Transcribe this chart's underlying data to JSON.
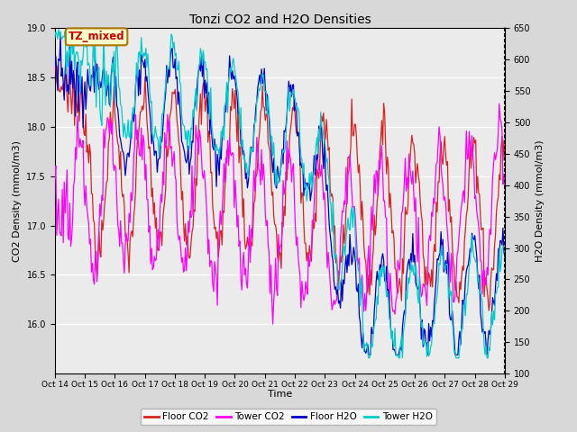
{
  "title": "Tonzi CO2 and H2O Densities",
  "xlabel": "Time",
  "ylabel_left": "CO2 Density (mmol/m3)",
  "ylabel_right": "H2O Density (mmol/m3)",
  "ylim_left": [
    15.5,
    19.0
  ],
  "ylim_right": [
    100,
    650
  ],
  "xtick_labels": [
    "Oct 14",
    "Oct 15",
    "Oct 16",
    "Oct 17",
    "Oct 18",
    "Oct 19",
    "Oct 20",
    "Oct 21",
    "Oct 22",
    "Oct 23",
    "Oct 24",
    "Oct 25",
    "Oct 26",
    "Oct 27",
    "Oct 28",
    "Oct 29"
  ],
  "annotation_text": "TZ_mixed",
  "annotation_color": "#cc0000",
  "annotation_bg": "#ffffcc",
  "annotation_border": "#aa7700",
  "colors": {
    "floor_co2": "#dd2222",
    "tower_co2": "#ff00ff",
    "floor_h2o": "#0000cc",
    "tower_h2o": "#00cccc"
  },
  "legend_labels": [
    "Floor CO2",
    "Tower CO2",
    "Floor H2O",
    "Tower H2O"
  ],
  "background_color": "#d8d8d8",
  "plot_bg": "#ebebeb",
  "grid_color": "#ffffff",
  "yticks_left": [
    16.0,
    16.5,
    17.0,
    17.5,
    18.0,
    18.5,
    19.0
  ],
  "yticks_right": [
    100,
    150,
    200,
    250,
    300,
    350,
    400,
    450,
    500,
    550,
    600,
    650
  ],
  "n_points": 480,
  "seed": 7
}
